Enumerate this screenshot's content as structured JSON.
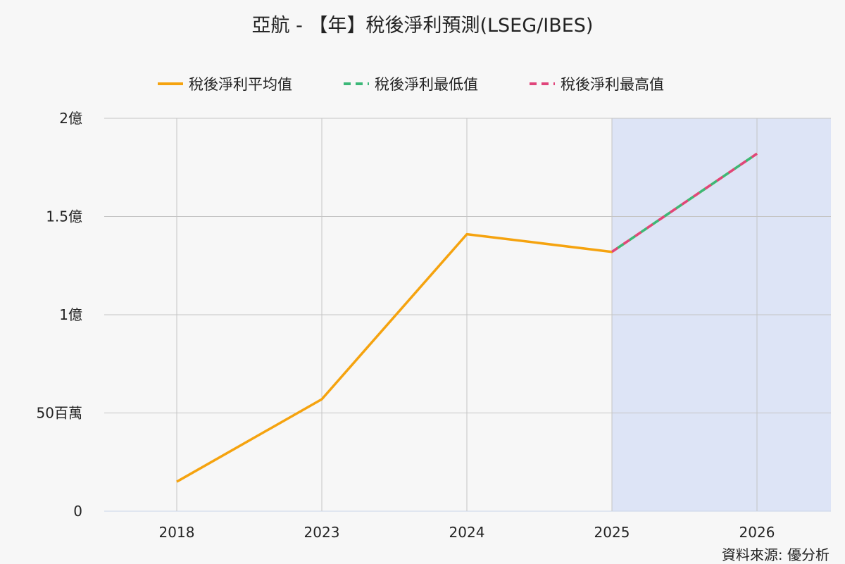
{
  "title": "亞航 - 【年】稅後淨利預測(LSEG/IBES)",
  "source": "資料來源: 優分析",
  "legend": [
    {
      "label": "稅後淨利平均值",
      "color": "#f5a30f",
      "style": "solid"
    },
    {
      "label": "稅後淨利最低值",
      "color": "#3cb878",
      "style": "dashed"
    },
    {
      "label": "稅後淨利最高值",
      "color": "#e0457b",
      "style": "dashed"
    }
  ],
  "chart_data": {
    "type": "line",
    "title": "亞航 - 【年】稅後淨利預測(LSEG/IBES)",
    "categories": [
      "2018",
      "2023",
      "2024",
      "2025",
      "2026"
    ],
    "yticks": [
      {
        "value": 0,
        "label": "0"
      },
      {
        "value": 50000000,
        "label": "50百萬"
      },
      {
        "value": 100000000,
        "label": "1億"
      },
      {
        "value": 150000000,
        "label": "1.5億"
      },
      {
        "value": 200000000,
        "label": "2億"
      }
    ],
    "ylim": [
      0,
      200000000
    ],
    "grid": true,
    "legend_position": "top",
    "forecast_region": {
      "from": "2025",
      "to": "2026"
    },
    "series": [
      {
        "name": "稅後淨利平均值",
        "color": "#f5a30f",
        "style": "solid",
        "values": [
          15000000,
          57000000,
          141000000,
          132000000,
          182000000
        ]
      },
      {
        "name": "稅後淨利最低值",
        "color": "#3cb878",
        "style": "dashed",
        "values": [
          null,
          null,
          null,
          132000000,
          182000000
        ]
      },
      {
        "name": "稅後淨利最高值",
        "color": "#e0457b",
        "style": "dashed",
        "values": [
          null,
          null,
          null,
          132000000,
          182000000
        ]
      }
    ]
  }
}
